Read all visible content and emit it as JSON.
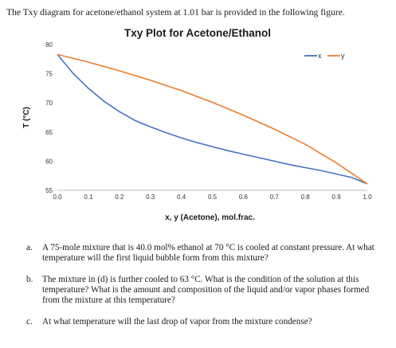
{
  "intro_text": "The Txy diagram for acetone/ethanol system at 1.01 bar is provided in the following figure.",
  "chart_data": {
    "type": "line",
    "title": "Txy Plot for Acetone/Ethanol",
    "xlabel": "x, y (Acetone), mol.frac.",
    "ylabel": "T (°C)",
    "xlim": [
      0.0,
      1.0
    ],
    "ylim": [
      55,
      80
    ],
    "x_ticks": [
      "0.0",
      "0.1",
      "0.2",
      "0.3",
      "0.4",
      "0.5",
      "0.6",
      "0.7",
      "0.8",
      "0.9",
      "1.0"
    ],
    "y_ticks": [
      "55",
      "60",
      "65",
      "70",
      "75",
      "80"
    ],
    "grid": false,
    "legend_position": "top-right",
    "series": [
      {
        "name": "x",
        "color": "#4472c4",
        "points": [
          [
            0.0,
            78.3
          ],
          [
            0.05,
            75.1
          ],
          [
            0.1,
            72.5
          ],
          [
            0.15,
            70.3
          ],
          [
            0.2,
            68.5
          ],
          [
            0.25,
            67.0
          ],
          [
            0.3,
            65.9
          ],
          [
            0.35,
            64.9
          ],
          [
            0.4,
            64.0
          ],
          [
            0.45,
            63.2
          ],
          [
            0.5,
            62.5
          ],
          [
            0.55,
            61.8
          ],
          [
            0.6,
            61.2
          ],
          [
            0.65,
            60.6
          ],
          [
            0.7,
            60.0
          ],
          [
            0.75,
            59.4
          ],
          [
            0.8,
            58.9
          ],
          [
            0.85,
            58.4
          ],
          [
            0.9,
            57.8
          ],
          [
            0.95,
            57.2
          ],
          [
            1.0,
            56.1
          ]
        ]
      },
      {
        "name": "y",
        "color": "#ed7d31",
        "points": [
          [
            0.0,
            78.3
          ],
          [
            0.1,
            77.0
          ],
          [
            0.2,
            75.5
          ],
          [
            0.3,
            73.9
          ],
          [
            0.4,
            72.1
          ],
          [
            0.5,
            70.1
          ],
          [
            0.6,
            67.9
          ],
          [
            0.7,
            65.5
          ],
          [
            0.8,
            62.9
          ],
          [
            0.9,
            59.7
          ],
          [
            1.0,
            56.1
          ]
        ]
      }
    ]
  },
  "questions": [
    {
      "letter": "a.",
      "text": "A 75-mole mixture that is 40.0 mol% ethanol at 70 °C is cooled at constant pressure. At what temperature will the first liquid bubble form from this mixture?"
    },
    {
      "letter": "b.",
      "text": "The mixture in (d) is further cooled to 63 °C. What is the condition of the solution at this temperature? What is the amount and composition of the liquid and/or vapor phases formed from the mixture at this temperature?"
    },
    {
      "letter": "c.",
      "text": "At what temperature will the last drop of vapor from the mixture condense?"
    }
  ]
}
